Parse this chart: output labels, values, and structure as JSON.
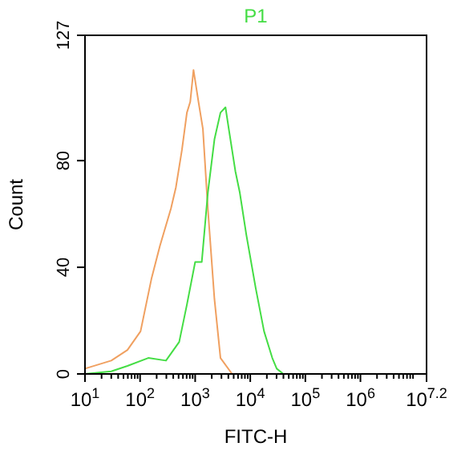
{
  "chart_data": {
    "type": "line",
    "title": "P1",
    "xlabel": "FITC-H",
    "ylabel": "Count",
    "log": "x",
    "marker": "none",
    "xlim": [
      10,
      15848932
    ],
    "xticks": [
      {
        "value": 10,
        "label": "10$^{1}$"
      },
      {
        "value": 100,
        "label": "10$^{2}$"
      },
      {
        "value": 1000,
        "label": "10$^{3}$"
      },
      {
        "value": 10000,
        "label": "10$^{4}$"
      },
      {
        "value": 100000,
        "label": "10$^{5}$"
      },
      {
        "value": 1000000,
        "label": "10$^{6}$"
      },
      {
        "value": 15848932,
        "label": "10$^{7.2}$"
      }
    ],
    "ylim": [
      0,
      127
    ],
    "yticks": [
      0,
      40,
      80,
      127
    ],
    "series": [
      {
        "color": "#f0a060",
        "x": [
          10,
          30,
          59,
          102,
          162,
          229,
          363,
          447,
          575,
          708,
          813,
          933,
          1150,
          1380,
          1700,
          2240,
          2880,
          4680
        ],
        "values": [
          2,
          5,
          9,
          16,
          36,
          48,
          62,
          70,
          84,
          98,
          102,
          114,
          102,
          92,
          62,
          28,
          6,
          0
        ]
      },
      {
        "color": "#44dd44",
        "x": [
          10,
          30,
          59,
          141,
          295,
          513,
          708,
          1000,
          1318,
          1700,
          2240,
          2880,
          3550,
          4070,
          5370,
          6460,
          8510,
          12600,
          17800,
          25100,
          30200,
          39800
        ],
        "values": [
          0,
          1,
          3,
          6,
          5,
          12,
          26,
          42,
          42,
          68,
          88,
          98,
          100,
          92,
          76,
          68,
          52,
          32,
          16,
          6,
          2,
          0
        ]
      }
    ]
  }
}
